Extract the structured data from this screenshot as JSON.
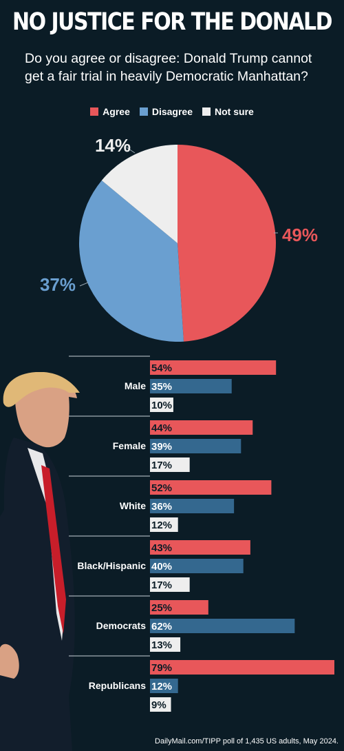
{
  "header": {
    "title": "NO JUSTICE FOR THE DONALD",
    "subtitle": "Do you agree or disagree: Donald Trump cannot get a fair trial in heavily Democratic Manhattan?"
  },
  "colors": {
    "agree": "#e8575a",
    "disagree_pie": "#6a9fd0",
    "disagree_bar": "#34688f",
    "not_sure": "#eeeeee",
    "background": "#0b1c26"
  },
  "chart_data": [
    {
      "type": "pie",
      "title": "",
      "legend": [
        "Agree",
        "Disagree",
        "Not sure"
      ],
      "legend_position": "top-center",
      "slices": [
        {
          "label": "Agree",
          "value": 49,
          "display": "49%"
        },
        {
          "label": "Disagree",
          "value": 37,
          "display": "37%"
        },
        {
          "label": "Not sure",
          "value": 14,
          "display": "14%"
        }
      ]
    },
    {
      "type": "bar",
      "orientation": "horizontal",
      "categories": [
        "Male",
        "Female",
        "White",
        "Black/Hispanic",
        "Democrats",
        "Republicans"
      ],
      "series": [
        {
          "name": "Agree",
          "values": [
            54,
            44,
            52,
            43,
            25,
            79
          ]
        },
        {
          "name": "Disagree",
          "values": [
            35,
            39,
            36,
            40,
            62,
            12
          ]
        },
        {
          "name": "Not sure",
          "values": [
            10,
            17,
            12,
            17,
            13,
            9
          ]
        }
      ],
      "xlim": [
        0,
        79
      ]
    }
  ],
  "footer": {
    "source": "DailyMail.com/TIPP poll of 1,435 US adults, May 2024."
  }
}
